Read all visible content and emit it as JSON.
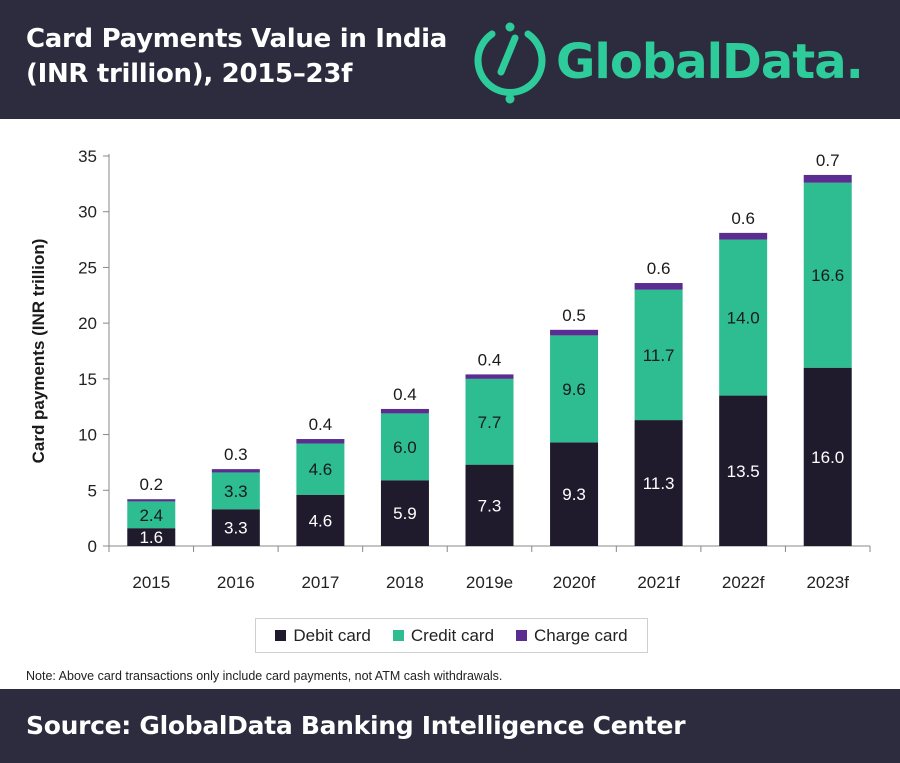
{
  "header": {
    "title_line1": "Card Payments Value in India",
    "title_line2": "(INR trillion), 2015–23f",
    "logo_text": "GlobalData.",
    "background": "#2c2c3e",
    "logo_color": "#2ecc9a"
  },
  "chart_data": {
    "type": "bar",
    "stacked": true,
    "categories": [
      "2015",
      "2016",
      "2017",
      "2018",
      "2019e",
      "2020f",
      "2021f",
      "2022f",
      "2023f"
    ],
    "series": [
      {
        "name": "Debit card",
        "color": "#1f1b2d",
        "values": [
          1.6,
          3.3,
          4.6,
          5.9,
          7.3,
          9.3,
          11.3,
          13.5,
          16.0
        ]
      },
      {
        "name": "Credit card",
        "color": "#2dbd91",
        "values": [
          2.4,
          3.3,
          4.6,
          6.0,
          7.7,
          9.6,
          11.7,
          14.0,
          16.6
        ]
      },
      {
        "name": "Charge card",
        "color": "#5b2d90",
        "values": [
          0.2,
          0.3,
          0.4,
          0.4,
          0.4,
          0.5,
          0.6,
          0.6,
          0.7
        ]
      }
    ],
    "value_labels": {
      "Debit card": [
        "1.6",
        "3.3",
        "4.6",
        "5.9",
        "7.3",
        "9.3",
        "11.3",
        "13.5",
        "16.0"
      ],
      "Credit card": [
        "2.4",
        "3.3",
        "4.6",
        "6.0",
        "7.7",
        "9.6",
        "11.7",
        "14.0",
        "16.6"
      ],
      "Charge card": [
        "0.2",
        "0.3",
        "0.4",
        "0.4",
        "0.4",
        "0.5",
        "0.6",
        "0.6",
        "0.7"
      ]
    },
    "ylabel": "Card payments (INR trillion)",
    "xlabel": "",
    "ylim": [
      0,
      35
    ],
    "yticks": [
      0,
      5,
      10,
      15,
      20,
      25,
      30,
      35
    ],
    "ytick_labels": [
      "0",
      "5",
      "10",
      "15",
      "20",
      "25",
      "30",
      "35"
    ],
    "grid": false,
    "legend_position": "bottom"
  },
  "note": "Note: Above card transactions only include card payments, not ATM cash withdrawals.",
  "footer": {
    "source": "Source: GlobalData Banking Intelligence Center"
  }
}
